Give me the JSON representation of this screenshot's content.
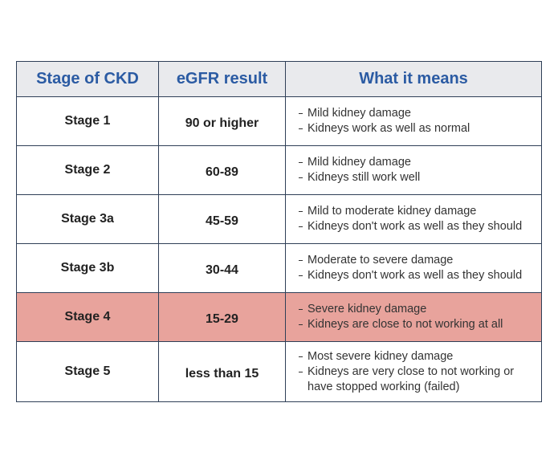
{
  "table": {
    "headers": [
      "Stage of CKD",
      "eGFR result",
      "What it means"
    ],
    "rows": [
      {
        "stage": "Stage 1",
        "egfr": "90 or higher",
        "meaning": [
          "Mild kidney damage",
          "Kidneys work as well as normal"
        ]
      },
      {
        "stage": "Stage 2",
        "egfr": "60-89",
        "meaning": [
          "Mild kidney damage",
          "Kidneys still work well"
        ]
      },
      {
        "stage": "Stage 3a",
        "egfr": "45-59",
        "meaning": [
          "Mild to moderate kidney damage",
          "Kidneys don't work as well as they should"
        ]
      },
      {
        "stage": "Stage 3b",
        "egfr": "30-44",
        "meaning": [
          "Moderate to severe damage",
          "Kidneys don't work as well as they should"
        ]
      },
      {
        "stage": "Stage 4",
        "egfr": "15-29",
        "meaning": [
          "Severe kidney damage",
          "Kidneys are close to not working at all"
        ]
      },
      {
        "stage": "Stage 5",
        "egfr": "less than 15",
        "meaning": [
          "Most severe kidney damage",
          "Kidneys are very close to not working or have stopped working (failed)"
        ]
      }
    ]
  }
}
